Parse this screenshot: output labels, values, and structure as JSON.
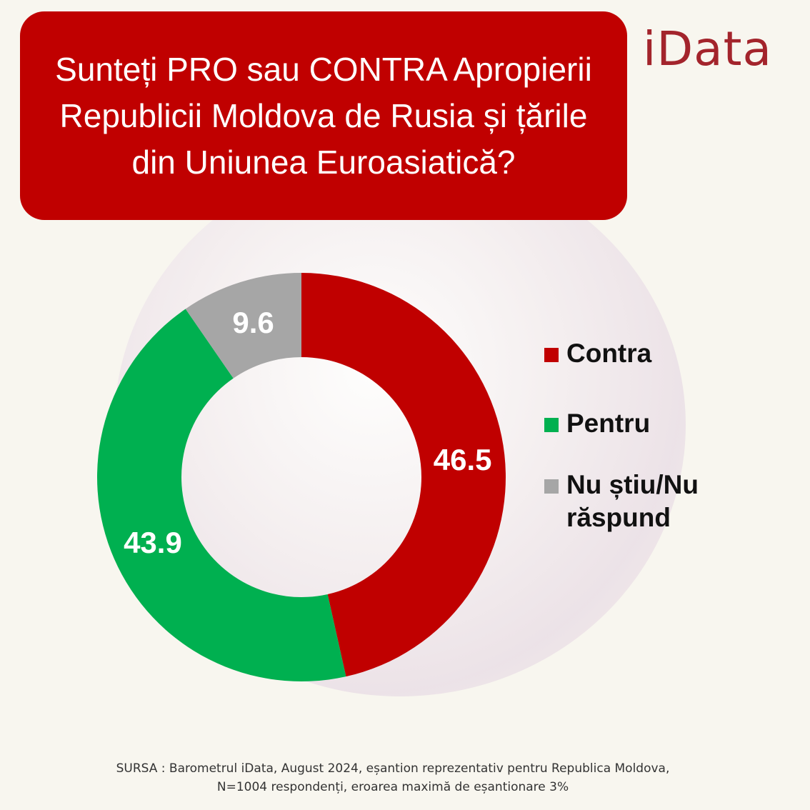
{
  "title": "Sunteți PRO sau CONTRA Apropierii Republicii Moldova de Rusia și țările din Uniunea Euroasiatică?",
  "brand": "iData",
  "chart_data": {
    "type": "pie",
    "title": "Sunteți PRO sau CONTRA Apropierii Republicii Moldova de Rusia și țările din Uniunea Euroasiatică?",
    "categories": [
      "Contra",
      "Pentru",
      "Nu știu/Nu răspund"
    ],
    "values": [
      46.5,
      43.9,
      9.6
    ],
    "colors": [
      "#c00000",
      "#00b050",
      "#a6a6a6"
    ],
    "data_labels": [
      "46.5",
      "43.9",
      "9.6"
    ],
    "legend_position": "right"
  },
  "legend": [
    {
      "label": "Contra",
      "color": "#c00000"
    },
    {
      "label": "Pentru",
      "color": "#00b050"
    },
    {
      "label": "Nu știu/Nu răspund",
      "color": "#a6a6a6"
    }
  ],
  "source_line1": "SURSA : Barometrul iData, August 2024, eșantion reprezentativ pentru Republica Moldova,",
  "source_line2": "N=1004 respondenți, eroarea maximă de eșantionare 3%"
}
